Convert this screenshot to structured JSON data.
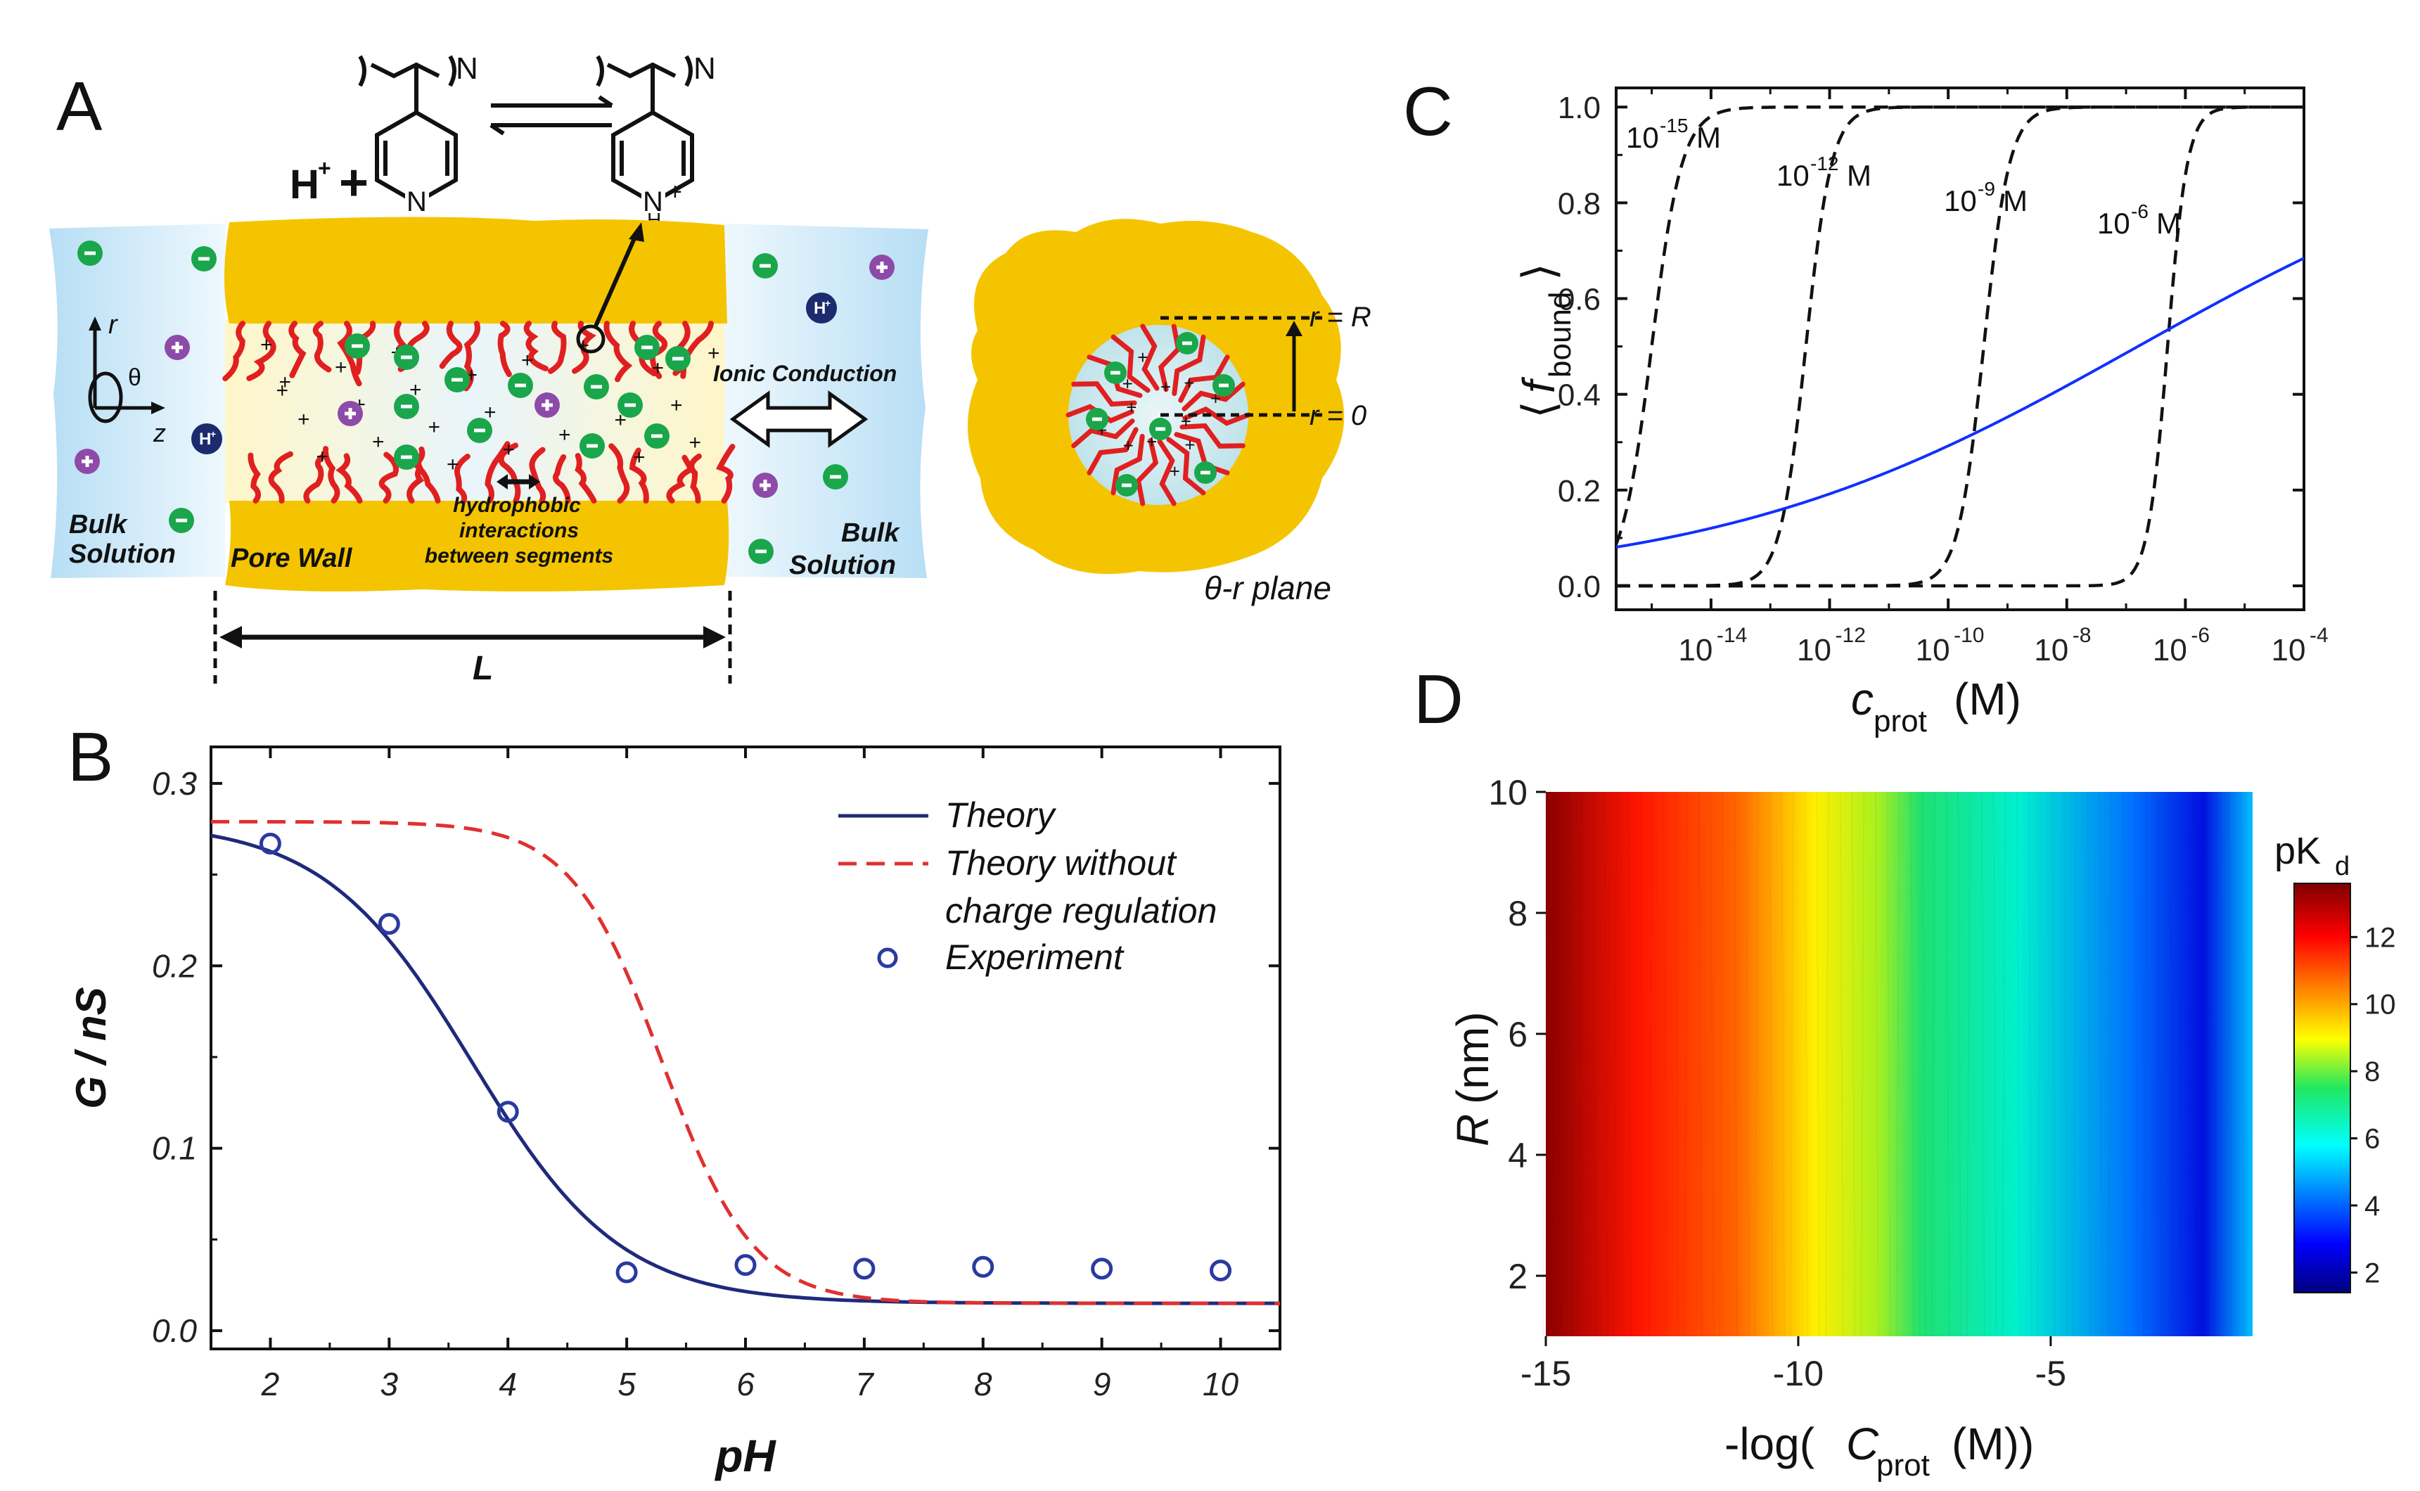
{
  "panel_labels": {
    "a": "A",
    "b": "B",
    "c": "C",
    "d": "D"
  },
  "panel_a": {
    "polymer_subscript": "N",
    "reaction_lhs": "H",
    "reaction_lhs_sup": "+",
    "plus_sign": "+",
    "ring_atom": "N",
    "protonated_atom": "N",
    "protonated_sup": "+",
    "protonated_h": "H",
    "ionic_conduction": "Ionic Conduction",
    "hydrophobic_line1": "hydrophobic",
    "hydrophobic_line2": "interactions",
    "hydrophobic_line3": "between segments",
    "bulk_left_1": "Bulk",
    "bulk_left_2": "Solution",
    "bulk_right_1": "Bulk",
    "bulk_right_2": "Solution",
    "pore_wall": "Pore Wall",
    "length_label": "L",
    "axis_r": "r",
    "axis_theta": "θ",
    "axis_z": "z",
    "hplus": "H",
    "hplus_sup": "+",
    "r_eq_R": "r = R",
    "r_eq_0": "r = 0",
    "plane_label": "θ-r plane"
  },
  "panel_b": {
    "ylabel": "G / nS",
    "xlabel": "pH",
    "legend": {
      "theory": "Theory",
      "nocr_1": "Theory without",
      "nocr_2": "charge regulation",
      "experiment": "Experiment"
    },
    "xticks": [
      "2",
      "3",
      "4",
      "5",
      "6",
      "7",
      "8",
      "9",
      "10"
    ],
    "yticks": [
      "0.0",
      "0.1",
      "0.2",
      "0.3"
    ]
  },
  "panel_c": {
    "ylabel_main": "f",
    "ylabel_sub": "bound",
    "xlabel_main": "c",
    "xlabel_sub": "prot",
    "xlabel_unit": "(M)",
    "yticks": [
      "0.0",
      "0.2",
      "0.4",
      "0.6",
      "0.8",
      "1.0"
    ],
    "xticks": [
      {
        "base": "10",
        "exp": "-14"
      },
      {
        "base": "10",
        "exp": "-12"
      },
      {
        "base": "10",
        "exp": "-10"
      },
      {
        "base": "10",
        "exp": "-8"
      },
      {
        "base": "10",
        "exp": "-6"
      },
      {
        "base": "10",
        "exp": "-4"
      }
    ],
    "curve_labels": [
      {
        "base": "10",
        "exp": "-15",
        "unit": "M"
      },
      {
        "base": "10",
        "exp": "-12",
        "unit": "M"
      },
      {
        "base": "10",
        "exp": "-9",
        "unit": "M"
      },
      {
        "base": "10",
        "exp": "-6",
        "unit": "M"
      }
    ]
  },
  "panel_d": {
    "ylabel_main": "R",
    "ylabel_unit": "(nm)",
    "xlabel_pre": "-log(",
    "xlabel_main": "C",
    "xlabel_sub": "prot",
    "xlabel_post": "(M))",
    "xticks": [
      "-15",
      "-10",
      "-5"
    ],
    "yticks": [
      "2",
      "4",
      "6",
      "8",
      "10"
    ],
    "cbar_title_main": "pK",
    "cbar_title_sub": "d",
    "cbar_ticks": [
      "2",
      "4",
      "6",
      "8",
      "10",
      "12"
    ]
  },
  "colors": {
    "theory": "#1f2a7a",
    "nocr": "#e03030",
    "experiment": "#2a3aa0",
    "pore_wall": "#f5c400",
    "solution": "#c9e6f7",
    "chain": "#e02020",
    "anion": "#1aa64b",
    "cation": "#8e4aa8",
    "hplus": "#1c2a6e",
    "panel_c_blue": "#1030ff"
  },
  "chart_data": [
    {
      "panel": "B",
      "type": "line",
      "title": "",
      "xlabel": "pH",
      "ylabel": "G / nS",
      "xlim": [
        1.5,
        10.5
      ],
      "ylim": [
        -0.01,
        0.32
      ],
      "series": [
        {
          "name": "Theory",
          "style": "solid",
          "model": "logistic",
          "g_low": 0.279,
          "g_high": 0.015,
          "pk": 3.7,
          "slope": 1.6
        },
        {
          "name": "Theory without charge regulation",
          "style": "dashed",
          "model": "logistic",
          "g_low": 0.279,
          "g_high": 0.015,
          "pk": 5.3,
          "slope": 2.6
        },
        {
          "name": "Experiment",
          "style": "markers",
          "x": [
            2,
            3,
            4,
            5,
            6,
            7,
            8,
            9,
            10
          ],
          "y": [
            0.267,
            0.223,
            0.12,
            0.032,
            0.036,
            0.034,
            0.035,
            0.034,
            0.033
          ]
        }
      ]
    },
    {
      "panel": "C",
      "type": "line",
      "xscale": "log",
      "xlabel": "c_prot (M)",
      "ylabel": "<f_bound>",
      "xlim_log10": [
        -15.6,
        -4
      ],
      "ylim": [
        -0.05,
        1.04
      ],
      "series": [
        {
          "name": "10^-15 M",
          "style": "dashed",
          "model": "hill",
          "log10_kd": -15.0,
          "hill_n": 1.7
        },
        {
          "name": "10^-12 M",
          "style": "dashed",
          "model": "hill",
          "log10_kd": -12.4,
          "hill_n": 2.0
        },
        {
          "name": "10^-9 M",
          "style": "dashed",
          "model": "hill",
          "log10_kd": -9.4,
          "hill_n": 2.0
        },
        {
          "name": "10^-6 M",
          "style": "dashed",
          "model": "hill",
          "log10_kd": -6.3,
          "hill_n": 2.6
        },
        {
          "name": "blue",
          "style": "solid",
          "model": "hill",
          "log10_kd": -6.8,
          "hill_n": 0.12
        }
      ]
    },
    {
      "panel": "D",
      "type": "heatmap",
      "xlabel": "-log(C_prot (M))",
      "ylabel": "R (nm)",
      "xlim": [
        -15,
        -1
      ],
      "ylim": [
        1,
        10
      ],
      "colorbar": {
        "label": "pK_d",
        "range": [
          1.4,
          13.6
        ],
        "ticks": [
          2,
          4,
          6,
          8,
          10,
          12
        ]
      },
      "values_description_x": [
        -15,
        -13,
        -11,
        -9,
        -7,
        -5,
        -3,
        -1
      ],
      "pKd_vs_x": [
        13.2,
        11.6,
        10.4,
        8.7,
        7.6,
        5.6,
        3.4,
        2.0
      ]
    }
  ]
}
